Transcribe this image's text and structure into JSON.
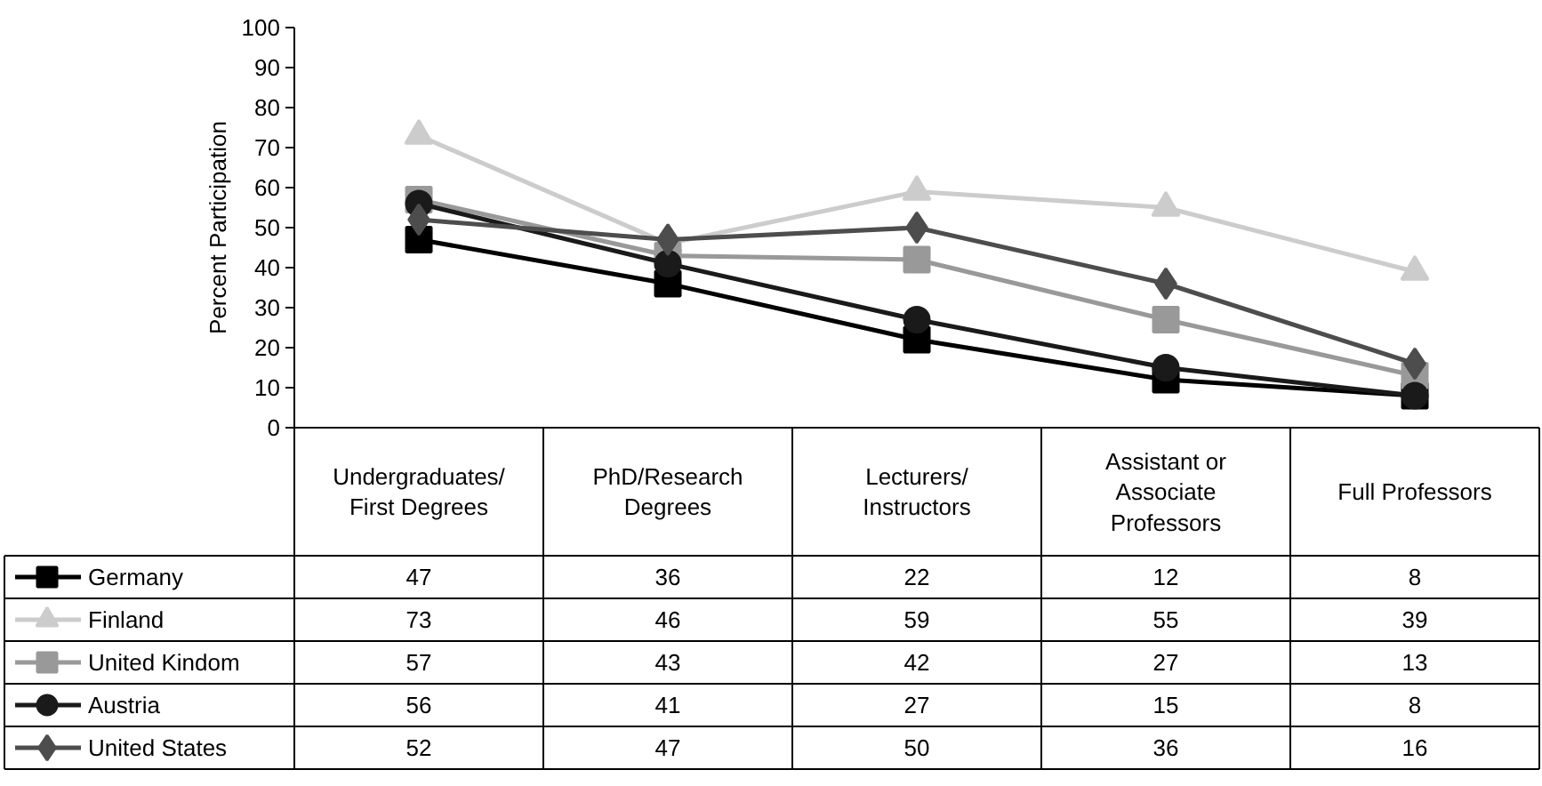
{
  "chart_data": {
    "type": "line",
    "ylabel": "Percent Participation",
    "categories": [
      "Undergraduates/ First Degrees",
      "PhD/Research Degrees",
      "Lecturers/ Instructors",
      "Assistant or Associate Professors",
      "Full Professors"
    ],
    "series": [
      {
        "name": "Germany",
        "color": "#000000",
        "marker": "square",
        "values": [
          47,
          36,
          22,
          12,
          8
        ]
      },
      {
        "name": "Finland",
        "color": "#cccccc",
        "marker": "triangle",
        "values": [
          73,
          46,
          59,
          55,
          39
        ]
      },
      {
        "name": "United Kindom",
        "color": "#999999",
        "marker": "square",
        "values": [
          57,
          43,
          42,
          27,
          13
        ]
      },
      {
        "name": "Austria",
        "color": "#1a1a1a",
        "marker": "circle",
        "values": [
          56,
          41,
          27,
          15,
          8
        ]
      },
      {
        "name": "United States",
        "color": "#4d4d4d",
        "marker": "diamond",
        "values": [
          52,
          47,
          50,
          36,
          16
        ]
      }
    ],
    "ylim": [
      0,
      100
    ],
    "yticks": [
      0,
      10,
      20,
      30,
      40,
      50,
      60,
      70,
      80,
      90,
      100
    ],
    "grid": false,
    "legend": "bottom left",
    "data_labels": true
  }
}
